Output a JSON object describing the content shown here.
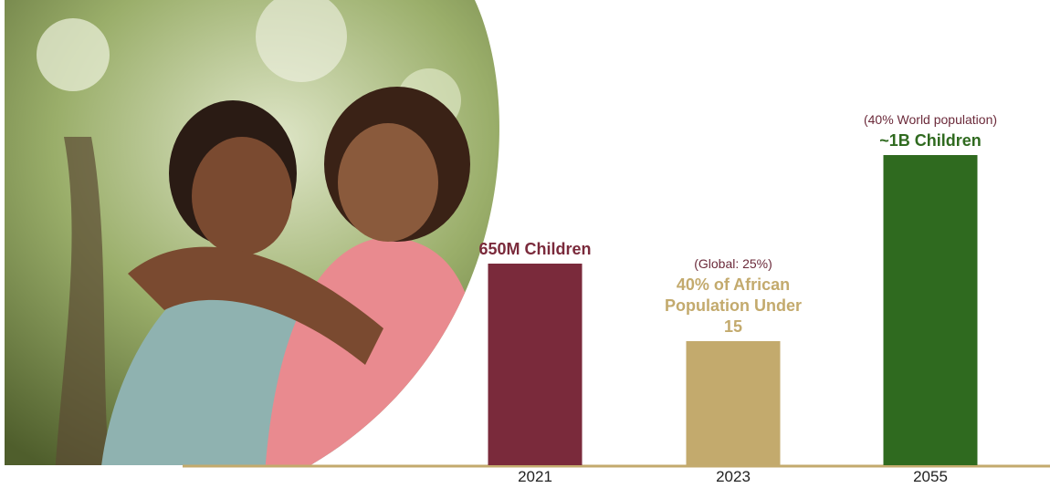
{
  "chart_data": {
    "type": "bar",
    "categories": [
      "2021",
      "2023",
      "2055"
    ],
    "values": [
      650,
      400,
      1000
    ],
    "value_labels": [
      "650M Children",
      "40% of African Population Under 15",
      "~1B Children"
    ],
    "notes": [
      null,
      "(Global: 25%)",
      "(40% World population)"
    ],
    "colors": [
      "#7a2a3b",
      "#c3aa6d",
      "#2f6a1f"
    ],
    "ylim": [
      0,
      1000
    ]
  }
}
